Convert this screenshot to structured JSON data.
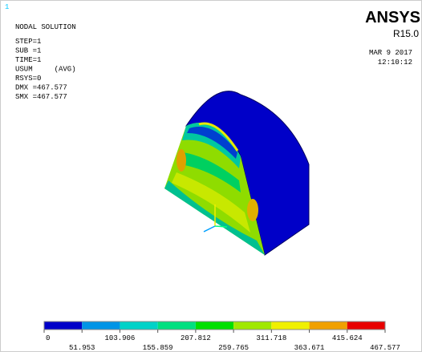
{
  "header": {
    "window_number": "1",
    "title": "NODAL SOLUTION",
    "info": [
      "STEP=1",
      "SUB =1",
      "TIME=1",
      "USUM     (AVG)",
      "RSYS=0",
      "DMX =467.577",
      "SMX =467.577"
    ]
  },
  "brand": {
    "name": "ANSYS",
    "version": "R15.0",
    "date": "MAR  9 2017",
    "time": "12:10:12"
  },
  "legend": {
    "ticks": [
      0,
      51.953,
      103.906,
      155.859,
      207.812,
      259.765,
      311.718,
      363.671,
      415.624,
      467.577
    ],
    "colors": [
      "#0000c8",
      "#0094e6",
      "#00d2c8",
      "#00e080",
      "#00e000",
      "#a0e800",
      "#f0f000",
      "#f0a000",
      "#e80000"
    ]
  }
}
